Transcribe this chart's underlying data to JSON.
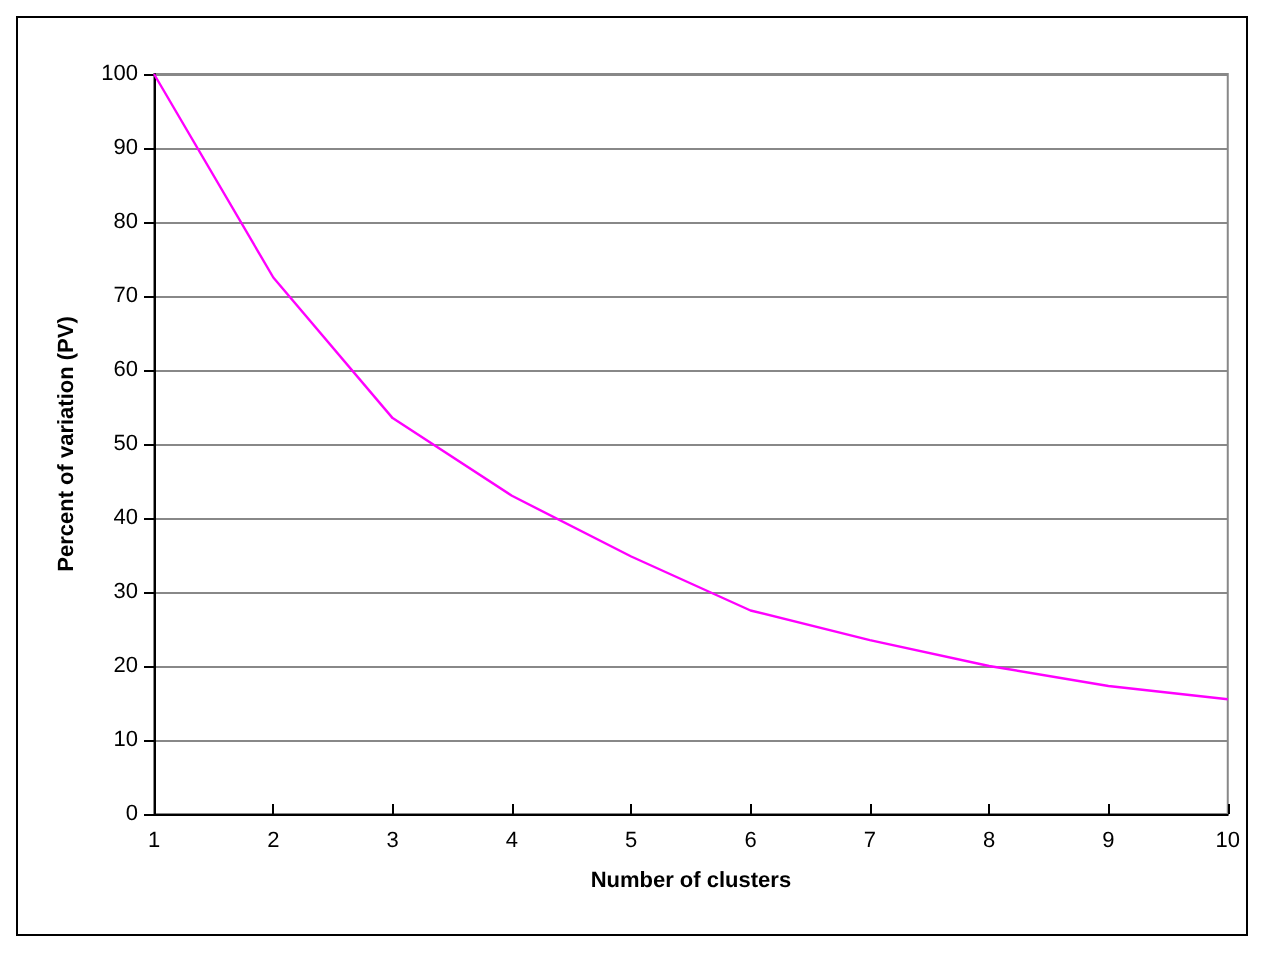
{
  "chart_data": {
    "type": "line",
    "xlabel": "Number of clusters",
    "ylabel": "Percent of variation (PV)",
    "x": [
      1,
      2,
      3,
      4,
      5,
      6,
      7,
      8,
      9,
      10
    ],
    "series": [
      {
        "color": "#ff00ff",
        "values": [
          100,
          72.5,
          53.5,
          43,
          34.8,
          27.5,
          23.5,
          20,
          17.3,
          15.5
        ]
      }
    ],
    "xlim": [
      1,
      10
    ],
    "xticks": [
      1,
      2,
      3,
      4,
      5,
      6,
      7,
      8,
      9,
      10
    ],
    "ylim": [
      0,
      100
    ],
    "yticks": [
      0,
      10,
      20,
      30,
      40,
      50,
      60,
      70,
      80,
      90,
      100
    ],
    "grid": "y",
    "marker": "none",
    "line_style": "solid"
  }
}
